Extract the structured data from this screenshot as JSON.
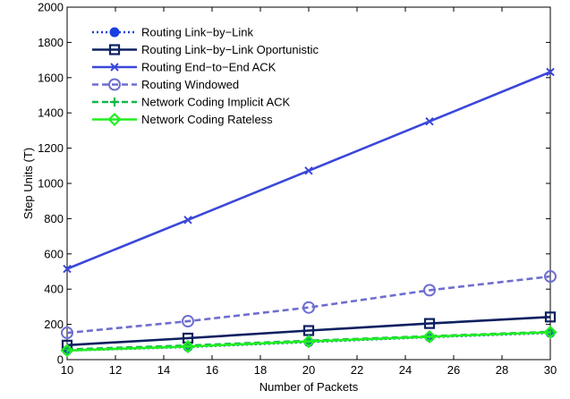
{
  "chart_data": {
    "type": "line",
    "title": "",
    "xlabel": "Number of Packets",
    "ylabel": "Step Units (T)",
    "x": [
      10,
      15,
      20,
      25,
      30
    ],
    "xlim": [
      10,
      30
    ],
    "ylim": [
      0,
      2000
    ],
    "xticks": [
      "10",
      "12",
      "14",
      "16",
      "18",
      "20",
      "22",
      "24",
      "26",
      "28",
      "30"
    ],
    "yticks": [
      "0",
      "200",
      "400",
      "600",
      "800",
      "1000",
      "1200",
      "1400",
      "1600",
      "1800",
      "2000"
    ],
    "grid": false,
    "legend_position": "top-left",
    "series": [
      {
        "name": "Routing Link−by−Link",
        "values": [
          52,
          72,
          100,
          128,
          152
        ],
        "color": "#1a3fe0",
        "line_style": "dotted",
        "marker": "filled-circle"
      },
      {
        "name": "Routing Link−by−Link Oportunistic",
        "values": [
          82,
          122,
          165,
          205,
          242
        ],
        "color": "#0d2060",
        "line_style": "solid",
        "marker": "square"
      },
      {
        "name": "Routing End−to−End ACK",
        "values": [
          515,
          793,
          1072,
          1352,
          1632
        ],
        "color": "#3b47d9",
        "line_style": "solid",
        "marker": "x"
      },
      {
        "name": "Routing Windowed",
        "values": [
          152,
          218,
          296,
          394,
          472
        ],
        "color": "#6e6ed0",
        "line_style": "dashed",
        "marker": "circle"
      },
      {
        "name": "Network Coding Implicit ACK",
        "values": [
          58,
          80,
          107,
          133,
          158
        ],
        "color": "#10b84a",
        "line_style": "dashed",
        "marker": "plus"
      },
      {
        "name": "Network Coding Rateless",
        "values": [
          52,
          74,
          103,
          130,
          155
        ],
        "color": "#22ee22",
        "line_style": "solid",
        "marker": "diamond"
      }
    ]
  }
}
